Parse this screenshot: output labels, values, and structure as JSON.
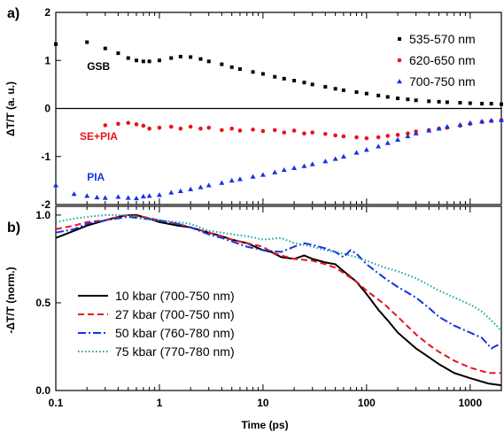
{
  "chart_data": [
    {
      "panel": "a)",
      "type": "scatter",
      "xscale": "log",
      "xlim": [
        0.1,
        2000
      ],
      "ylim": [
        -2,
        2
      ],
      "yticks": [
        2,
        1,
        0,
        -1,
        -2
      ],
      "ylabel": "ΔT/T (a. u.)",
      "zero_line": true,
      "legend_position": "top-right",
      "series": [
        {
          "name": "535-570 nm",
          "marker": "square",
          "color": "#000000",
          "points": [
            [
              0.1,
              1.34
            ],
            [
              0.2,
              1.38
            ],
            [
              0.3,
              1.25
            ],
            [
              0.4,
              1.15
            ],
            [
              0.5,
              1.05
            ],
            [
              0.6,
              1.0
            ],
            [
              0.7,
              0.98
            ],
            [
              0.8,
              0.98
            ],
            [
              1.0,
              1.0
            ],
            [
              1.3,
              1.05
            ],
            [
              1.6,
              1.08
            ],
            [
              2,
              1.07
            ],
            [
              2.5,
              1.03
            ],
            [
              3,
              0.98
            ],
            [
              4,
              0.92
            ],
            [
              5,
              0.86
            ],
            [
              6,
              0.82
            ],
            [
              8,
              0.76
            ],
            [
              10,
              0.72
            ],
            [
              13,
              0.66
            ],
            [
              16,
              0.62
            ],
            [
              20,
              0.58
            ],
            [
              25,
              0.54
            ],
            [
              30,
              0.5
            ],
            [
              40,
              0.45
            ],
            [
              50,
              0.41
            ],
            [
              60,
              0.38
            ],
            [
              80,
              0.34
            ],
            [
              100,
              0.31
            ],
            [
              130,
              0.27
            ],
            [
              160,
              0.24
            ],
            [
              200,
              0.21
            ],
            [
              250,
              0.19
            ],
            [
              300,
              0.17
            ],
            [
              400,
              0.15
            ],
            [
              500,
              0.14
            ],
            [
              600,
              0.13
            ],
            [
              800,
              0.12
            ],
            [
              1000,
              0.11
            ],
            [
              1300,
              0.1
            ],
            [
              1600,
              0.1
            ],
            [
              2000,
              0.09
            ]
          ]
        },
        {
          "name": "620-650 nm",
          "marker": "circle",
          "color": "#e8131b",
          "points": [
            [
              0.3,
              -0.35
            ],
            [
              0.4,
              -0.32
            ],
            [
              0.5,
              -0.3
            ],
            [
              0.6,
              -0.33
            ],
            [
              0.7,
              -0.36
            ],
            [
              0.8,
              -0.42
            ],
            [
              1.0,
              -0.4
            ],
            [
              1.3,
              -0.38
            ],
            [
              1.6,
              -0.42
            ],
            [
              2,
              -0.38
            ],
            [
              2.5,
              -0.42
            ],
            [
              3,
              -0.4
            ],
            [
              4,
              -0.45
            ],
            [
              5,
              -0.42
            ],
            [
              6,
              -0.46
            ],
            [
              8,
              -0.44
            ],
            [
              10,
              -0.47
            ],
            [
              13,
              -0.45
            ],
            [
              16,
              -0.5
            ],
            [
              20,
              -0.46
            ],
            [
              25,
              -0.52
            ],
            [
              30,
              -0.5
            ],
            [
              40,
              -0.53
            ],
            [
              50,
              -0.56
            ],
            [
              60,
              -0.58
            ],
            [
              80,
              -0.6
            ],
            [
              100,
              -0.62
            ],
            [
              130,
              -0.6
            ],
            [
              160,
              -0.57
            ],
            [
              200,
              -0.55
            ],
            [
              250,
              -0.52
            ],
            [
              300,
              -0.48
            ],
            [
              400,
              -0.45
            ],
            [
              500,
              -0.42
            ],
            [
              600,
              -0.4
            ],
            [
              800,
              -0.36
            ],
            [
              1000,
              -0.32
            ],
            [
              1300,
              -0.28
            ],
            [
              1600,
              -0.26
            ],
            [
              2000,
              -0.24
            ]
          ]
        },
        {
          "name": "700-750 nm",
          "marker": "triangle",
          "color": "#1433e8",
          "points": [
            [
              0.1,
              -1.6
            ],
            [
              0.15,
              -1.78
            ],
            [
              0.2,
              -1.82
            ],
            [
              0.25,
              -1.85
            ],
            [
              0.3,
              -1.86
            ],
            [
              0.4,
              -1.84
            ],
            [
              0.5,
              -1.86
            ],
            [
              0.6,
              -1.87
            ],
            [
              0.7,
              -1.83
            ],
            [
              0.8,
              -1.82
            ],
            [
              1.0,
              -1.8
            ],
            [
              1.3,
              -1.75
            ],
            [
              1.6,
              -1.72
            ],
            [
              2,
              -1.68
            ],
            [
              2.5,
              -1.64
            ],
            [
              3,
              -1.6
            ],
            [
              4,
              -1.55
            ],
            [
              5,
              -1.5
            ],
            [
              6,
              -1.47
            ],
            [
              8,
              -1.42
            ],
            [
              10,
              -1.38
            ],
            [
              13,
              -1.33
            ],
            [
              16,
              -1.28
            ],
            [
              20,
              -1.24
            ],
            [
              25,
              -1.2
            ],
            [
              30,
              -1.16
            ],
            [
              40,
              -1.1
            ],
            [
              50,
              -1.05
            ],
            [
              60,
              -1.0
            ],
            [
              80,
              -0.92
            ],
            [
              100,
              -0.86
            ],
            [
              130,
              -0.79
            ],
            [
              160,
              -0.72
            ],
            [
              200,
              -0.65
            ],
            [
              250,
              -0.58
            ],
            [
              300,
              -0.52
            ],
            [
              400,
              -0.46
            ],
            [
              500,
              -0.42
            ],
            [
              600,
              -0.38
            ],
            [
              800,
              -0.34
            ],
            [
              1000,
              -0.3
            ],
            [
              1300,
              -0.27
            ],
            [
              1600,
              -0.25
            ],
            [
              2000,
              -0.24
            ]
          ]
        }
      ],
      "annotations": [
        {
          "text": "GSB",
          "x": 0.2,
          "y": 0.8,
          "color": "#000000"
        },
        {
          "text": "SE+PIA",
          "x": 0.17,
          "y": -0.65,
          "color": "#e8131b"
        },
        {
          "text": "PIA",
          "x": 0.2,
          "y": -1.5,
          "color": "#1433e8"
        }
      ]
    },
    {
      "panel": "b)",
      "type": "line",
      "xscale": "log",
      "xlim": [
        0.1,
        2000
      ],
      "ylim": [
        0,
        1.05
      ],
      "yticks": [
        0.0,
        0.5,
        1.0
      ],
      "ytick_labels": [
        "0.0",
        "0.5",
        "1.0"
      ],
      "xticks": [
        0.1,
        1,
        10,
        100,
        1000
      ],
      "xtick_labels": [
        "0.1",
        "1",
        "10",
        "100",
        "1000"
      ],
      "xlabel": "Time (ps)",
      "ylabel": "-ΔT/T (norm.)",
      "legend_position": "bottom-left",
      "series": [
        {
          "name": "10 kbar (700-750 nm)",
          "style": "solid",
          "color": "#000000",
          "points": [
            [
              0.1,
              0.87
            ],
            [
              0.15,
              0.91
            ],
            [
              0.2,
              0.94
            ],
            [
              0.3,
              0.97
            ],
            [
              0.4,
              0.99
            ],
            [
              0.5,
              1.0
            ],
            [
              0.6,
              1.0
            ],
            [
              0.8,
              0.98
            ],
            [
              1,
              0.96
            ],
            [
              1.5,
              0.94
            ],
            [
              2,
              0.93
            ],
            [
              3,
              0.9
            ],
            [
              4,
              0.88
            ],
            [
              5,
              0.86
            ],
            [
              7,
              0.84
            ],
            [
              10,
              0.8
            ],
            [
              12,
              0.79
            ],
            [
              15,
              0.76
            ],
            [
              20,
              0.75
            ],
            [
              25,
              0.77
            ],
            [
              30,
              0.75
            ],
            [
              40,
              0.73
            ],
            [
              50,
              0.72
            ],
            [
              60,
              0.68
            ],
            [
              80,
              0.62
            ],
            [
              100,
              0.55
            ],
            [
              130,
              0.46
            ],
            [
              160,
              0.4
            ],
            [
              200,
              0.33
            ],
            [
              300,
              0.24
            ],
            [
              400,
              0.19
            ],
            [
              500,
              0.15
            ],
            [
              700,
              0.1
            ],
            [
              1000,
              0.07
            ],
            [
              1500,
              0.04
            ],
            [
              2000,
              0.03
            ]
          ]
        },
        {
          "name": "27 kbar (700-750 nm)",
          "style": "dashed",
          "color": "#e8131b",
          "points": [
            [
              0.1,
              0.92
            ],
            [
              0.15,
              0.94
            ],
            [
              0.2,
              0.96
            ],
            [
              0.3,
              0.97
            ],
            [
              0.4,
              0.99
            ],
            [
              0.5,
              1.0
            ],
            [
              0.7,
              0.99
            ],
            [
              1,
              0.97
            ],
            [
              1.5,
              0.95
            ],
            [
              2,
              0.93
            ],
            [
              3,
              0.9
            ],
            [
              4,
              0.88
            ],
            [
              5,
              0.86
            ],
            [
              7,
              0.84
            ],
            [
              10,
              0.82
            ],
            [
              12,
              0.79
            ],
            [
              15,
              0.77
            ],
            [
              20,
              0.75
            ],
            [
              30,
              0.74
            ],
            [
              40,
              0.72
            ],
            [
              50,
              0.7
            ],
            [
              60,
              0.67
            ],
            [
              80,
              0.62
            ],
            [
              100,
              0.57
            ],
            [
              150,
              0.49
            ],
            [
              200,
              0.42
            ],
            [
              300,
              0.32
            ],
            [
              400,
              0.26
            ],
            [
              500,
              0.22
            ],
            [
              700,
              0.17
            ],
            [
              1000,
              0.13
            ],
            [
              1500,
              0.1
            ],
            [
              2000,
              0.1
            ]
          ]
        },
        {
          "name": "50 kbar (760-780 nm)",
          "style": "dashdot",
          "color": "#1433e8",
          "points": [
            [
              0.1,
              0.9
            ],
            [
              0.15,
              0.92
            ],
            [
              0.2,
              0.95
            ],
            [
              0.3,
              0.97
            ],
            [
              0.5,
              0.99
            ],
            [
              0.7,
              0.98
            ],
            [
              1,
              0.97
            ],
            [
              1.5,
              0.95
            ],
            [
              2,
              0.93
            ],
            [
              3,
              0.89
            ],
            [
              4,
              0.87
            ],
            [
              5,
              0.85
            ],
            [
              7,
              0.82
            ],
            [
              10,
              0.8
            ],
            [
              15,
              0.79
            ],
            [
              20,
              0.82
            ],
            [
              25,
              0.84
            ],
            [
              30,
              0.83
            ],
            [
              40,
              0.81
            ],
            [
              50,
              0.79
            ],
            [
              60,
              0.76
            ],
            [
              70,
              0.8
            ],
            [
              80,
              0.78
            ],
            [
              100,
              0.72
            ],
            [
              150,
              0.64
            ],
            [
              200,
              0.59
            ],
            [
              300,
              0.53
            ],
            [
              400,
              0.47
            ],
            [
              500,
              0.42
            ],
            [
              700,
              0.37
            ],
            [
              1000,
              0.33
            ],
            [
              1300,
              0.3
            ],
            [
              1600,
              0.24
            ],
            [
              2000,
              0.27
            ]
          ]
        },
        {
          "name": "75 kbar (770-780 nm)",
          "style": "dotted",
          "color": "#13a3a3",
          "points": [
            [
              0.1,
              0.96
            ],
            [
              0.15,
              0.98
            ],
            [
              0.2,
              0.99
            ],
            [
              0.3,
              1.0
            ],
            [
              0.5,
              1.0
            ],
            [
              0.7,
              0.98
            ],
            [
              1,
              0.97
            ],
            [
              1.5,
              0.96
            ],
            [
              2,
              0.95
            ],
            [
              3,
              0.91
            ],
            [
              4,
              0.9
            ],
            [
              5,
              0.89
            ],
            [
              7,
              0.88
            ],
            [
              10,
              0.86
            ],
            [
              15,
              0.87
            ],
            [
              20,
              0.84
            ],
            [
              25,
              0.83
            ],
            [
              30,
              0.82
            ],
            [
              40,
              0.8
            ],
            [
              50,
              0.79
            ],
            [
              60,
              0.78
            ],
            [
              80,
              0.76
            ],
            [
              100,
              0.74
            ],
            [
              150,
              0.7
            ],
            [
              200,
              0.68
            ],
            [
              300,
              0.64
            ],
            [
              400,
              0.6
            ],
            [
              500,
              0.57
            ],
            [
              700,
              0.53
            ],
            [
              1000,
              0.49
            ],
            [
              1300,
              0.45
            ],
            [
              1600,
              0.4
            ],
            [
              2000,
              0.34
            ]
          ]
        }
      ]
    }
  ]
}
